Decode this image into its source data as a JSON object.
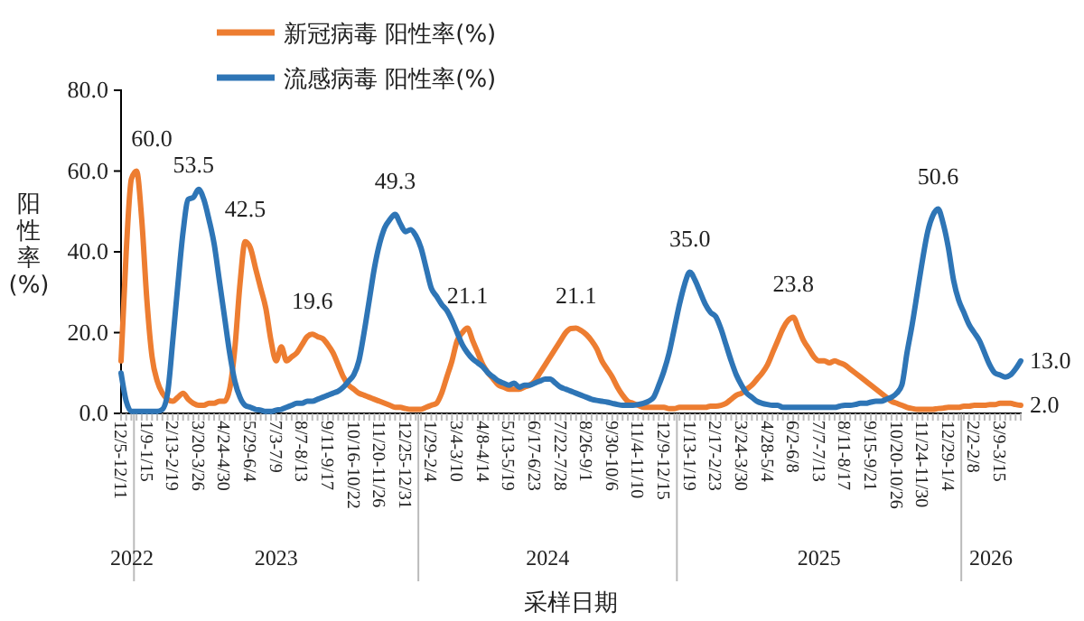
{
  "chart_data": {
    "type": "line",
    "xlabel": "采样日期",
    "ylabel": "阳性率(%)",
    "legend": "top",
    "grid": false,
    "marker": "none",
    "line_style": "solid",
    "ylim": [
      0,
      80
    ],
    "yticks": [
      {
        "value": 0,
        "label": "0.0"
      },
      {
        "value": 20,
        "label": "20.0"
      },
      {
        "value": 40,
        "label": "40.0"
      },
      {
        "value": 60,
        "label": "60.0"
      },
      {
        "value": 80,
        "label": "80.0"
      }
    ],
    "annotations": [
      "2022",
      "2023",
      "2024",
      "2025",
      "2026"
    ],
    "categories": [
      "12/5-12/11",
      null,
      null,
      null,
      null,
      "1/9-1/15",
      null,
      null,
      null,
      null,
      "2/13-2/19",
      null,
      null,
      null,
      null,
      "3/20-3/26",
      null,
      null,
      null,
      null,
      "4/24-4/30",
      null,
      null,
      null,
      null,
      "5/29-6/4",
      null,
      null,
      null,
      null,
      "7/3-7/9",
      null,
      null,
      null,
      null,
      "8/7-8/13",
      null,
      null,
      null,
      null,
      "9/11-9/17",
      null,
      null,
      null,
      null,
      "10/16-10/22",
      null,
      null,
      null,
      null,
      "11/20-11/26",
      null,
      null,
      null,
      null,
      "12/25-12/31",
      null,
      null,
      null,
      null,
      "1/29-2/4",
      null,
      null,
      null,
      null,
      "3/4-3/10",
      null,
      null,
      null,
      null,
      "4/8-4/14",
      null,
      null,
      null,
      null,
      "5/13-5/19",
      null,
      null,
      null,
      null,
      "6/17-6/23",
      null,
      null,
      null,
      null,
      "7/22-7/28",
      null,
      null,
      null,
      null,
      "8/26-9/1",
      null,
      null,
      null,
      null,
      "9/30-10/6",
      null,
      null,
      null,
      null,
      "11/4-11/10",
      null,
      null,
      null,
      null,
      "12/9-12/15",
      null,
      null,
      null,
      null,
      "1/13-1/19",
      null,
      null,
      null,
      null,
      "2/17-2/23",
      null,
      null,
      null,
      null,
      "3/24-3/30",
      null,
      null,
      null,
      null,
      "4/28-5/4",
      null,
      null,
      null,
      null,
      "6/2-6/8",
      null,
      null,
      null,
      null,
      "7/7-7/13",
      null,
      null,
      null,
      null,
      "8/11-8/17",
      null,
      null,
      null,
      null,
      "9/15-9/21",
      null,
      null,
      null,
      null,
      "10/20-10/26",
      null,
      null,
      null,
      null,
      "11/24-11/30",
      null,
      null,
      null,
      null,
      "12/29-1/4",
      null,
      null,
      null,
      null,
      "2/2-2/8",
      null,
      null,
      null,
      null,
      "3/9-3/15",
      null,
      null,
      null,
      null
    ],
    "series": [
      {
        "name": "新冠病毒 阳性率(%)",
        "color": "#ed7d31",
        "values": [
          13,
          40,
          58,
          60,
          48,
          28,
          14,
          8,
          5,
          3.5,
          3,
          4,
          5,
          3.5,
          2.5,
          2,
          2,
          2.5,
          2.5,
          3,
          3,
          6,
          16,
          32,
          42.5,
          41,
          36,
          31,
          26,
          18,
          13,
          16.5,
          13,
          14,
          15,
          17,
          19,
          19.6,
          19,
          18.5,
          17,
          15,
          12,
          9,
          7,
          6,
          5,
          4.5,
          4,
          3.5,
          3,
          2.5,
          2,
          1.5,
          1.5,
          1.2,
          1,
          1,
          1,
          1.5,
          2,
          2.5,
          5,
          9,
          13,
          18,
          20,
          21.1,
          18,
          15,
          12,
          10,
          8.5,
          7,
          6.5,
          6,
          6,
          6,
          6.5,
          7,
          8,
          10,
          12,
          14,
          16,
          18,
          20,
          21,
          21.1,
          20.5,
          19.5,
          18,
          16,
          13,
          11,
          9,
          6.5,
          4.5,
          3,
          2.5,
          2,
          1.5,
          1.5,
          1.5,
          1.5,
          1.5,
          1.2,
          1.2,
          1.5,
          1.5,
          1.5,
          1.5,
          1.5,
          1.5,
          1.8,
          1.8,
          2,
          2.5,
          3.5,
          4.5,
          5,
          6,
          7,
          8.5,
          10,
          12,
          15,
          18,
          21,
          23,
          23.8,
          21,
          18,
          16,
          14,
          13,
          13,
          12.5,
          13,
          12.5,
          12,
          11,
          10,
          9,
          8,
          7,
          6,
          5,
          4,
          3,
          2.5,
          2,
          1.5,
          1.2,
          1,
          1,
          1,
          1,
          1.2,
          1.3,
          1.5,
          1.5,
          1.5,
          1.8,
          1.8,
          2,
          2,
          2,
          2.2,
          2.2,
          2.5,
          2.5,
          2.5,
          2.2,
          2.0
        ],
        "value_labels": [
          null,
          null,
          null,
          "60.0",
          null,
          null,
          null,
          null,
          null,
          null,
          null,
          null,
          null,
          null,
          null,
          null,
          null,
          null,
          null,
          null,
          null,
          null,
          null,
          null,
          "42.5",
          null,
          null,
          null,
          null,
          null,
          null,
          null,
          null,
          null,
          null,
          null,
          null,
          "19.6",
          null,
          null,
          null,
          null,
          null,
          null,
          null,
          null,
          null,
          null,
          null,
          null,
          null,
          null,
          null,
          null,
          null,
          null,
          null,
          null,
          null,
          null,
          null,
          null,
          null,
          null,
          null,
          null,
          null,
          "21.1",
          null,
          null,
          null,
          null,
          null,
          null,
          null,
          null,
          null,
          null,
          null,
          null,
          null,
          null,
          null,
          null,
          null,
          null,
          null,
          null,
          "21.1",
          null,
          null,
          null,
          null,
          null,
          null,
          null,
          null,
          null,
          null,
          null,
          null,
          null,
          null,
          null,
          null,
          null,
          null,
          null,
          null,
          null,
          null,
          null,
          null,
          null,
          null,
          null,
          null,
          null,
          null,
          null,
          null,
          null,
          null,
          null,
          null,
          null,
          null,
          null,
          null,
          null,
          "23.8",
          null,
          null,
          null,
          null,
          null,
          null,
          null,
          null,
          null,
          null,
          null,
          null,
          null,
          null,
          null,
          null,
          null,
          null,
          null,
          null,
          null,
          null,
          null,
          null,
          null,
          null,
          null,
          null,
          null,
          null,
          null,
          null,
          null,
          null,
          null,
          null,
          null,
          null,
          null,
          null,
          null,
          null,
          null,
          "2.0"
        ]
      },
      {
        "name": "流感病毒 阳性率(%)",
        "color": "#2e75b6",
        "values": [
          10,
          3,
          0.5,
          0.5,
          0.5,
          0.5,
          0.5,
          0.5,
          1,
          5,
          18,
          32,
          45,
          53,
          53.5,
          55.5,
          53,
          48,
          42,
          33,
          24,
          15,
          8,
          4,
          2,
          1.5,
          1,
          0.8,
          0.5,
          0.5,
          0.8,
          1,
          1.5,
          2,
          2.5,
          2.5,
          3,
          3,
          3.5,
          4,
          4.5,
          5,
          5.5,
          6.5,
          8,
          9.5,
          13,
          20,
          28,
          36,
          42,
          46,
          48,
          49.3,
          47,
          45,
          45.5,
          44,
          41,
          36,
          31,
          29,
          27,
          25.5,
          23,
          20,
          17,
          15,
          13.5,
          12.5,
          11.5,
          10,
          9,
          8,
          7.5,
          7,
          7.5,
          6.5,
          7,
          7,
          7.5,
          8,
          8.5,
          8.5,
          7.5,
          6.5,
          6,
          5.5,
          5,
          4.5,
          4,
          3.5,
          3.2,
          3,
          2.8,
          2.5,
          2.2,
          2,
          2,
          2,
          2.2,
          2.5,
          3,
          4,
          7,
          10.5,
          15,
          21,
          27,
          32,
          35,
          33,
          30,
          27,
          25,
          24,
          21,
          17,
          13,
          9.5,
          7,
          5,
          4,
          3,
          2.5,
          2.2,
          2,
          2,
          1.5,
          1.5,
          1.5,
          1.5,
          1.5,
          1.5,
          1.5,
          1.5,
          1.5,
          1.5,
          1.5,
          1.8,
          2,
          2,
          2.2,
          2.5,
          2.5,
          2.8,
          3,
          3,
          3.5,
          4,
          5,
          7,
          15,
          22,
          30,
          38,
          45,
          49,
          50.6,
          47,
          41,
          33,
          28,
          25,
          22,
          20,
          18,
          15,
          12,
          10,
          9.5,
          9,
          9.5,
          11,
          13.0
        ],
        "value_labels": [
          null,
          null,
          null,
          null,
          null,
          null,
          null,
          null,
          null,
          null,
          null,
          null,
          null,
          null,
          "53.5",
          null,
          null,
          null,
          null,
          null,
          null,
          null,
          null,
          null,
          null,
          null,
          null,
          null,
          null,
          null,
          null,
          null,
          null,
          null,
          null,
          null,
          null,
          null,
          null,
          null,
          null,
          null,
          null,
          null,
          null,
          null,
          null,
          null,
          null,
          null,
          null,
          null,
          null,
          "49.3",
          null,
          null,
          null,
          null,
          null,
          null,
          null,
          null,
          null,
          null,
          null,
          null,
          null,
          null,
          null,
          null,
          null,
          null,
          null,
          null,
          null,
          null,
          null,
          null,
          null,
          null,
          null,
          null,
          null,
          null,
          null,
          null,
          null,
          null,
          null,
          null,
          null,
          null,
          null,
          null,
          null,
          null,
          null,
          null,
          null,
          null,
          null,
          null,
          null,
          null,
          null,
          null,
          null,
          null,
          null,
          null,
          "35.0",
          null,
          null,
          null,
          null,
          null,
          null,
          null,
          null,
          null,
          null,
          null,
          null,
          null,
          null,
          null,
          null,
          null,
          null,
          null,
          null,
          null,
          null,
          null,
          null,
          null,
          null,
          null,
          null,
          null,
          null,
          null,
          null,
          null,
          null,
          null,
          null,
          null,
          null,
          null,
          null,
          null,
          null,
          null,
          null,
          null,
          null,
          null,
          "50.6",
          null,
          null,
          null,
          null,
          null,
          null,
          null,
          null,
          null,
          null,
          null,
          null,
          null,
          null,
          null,
          "13.0"
        ]
      }
    ]
  }
}
